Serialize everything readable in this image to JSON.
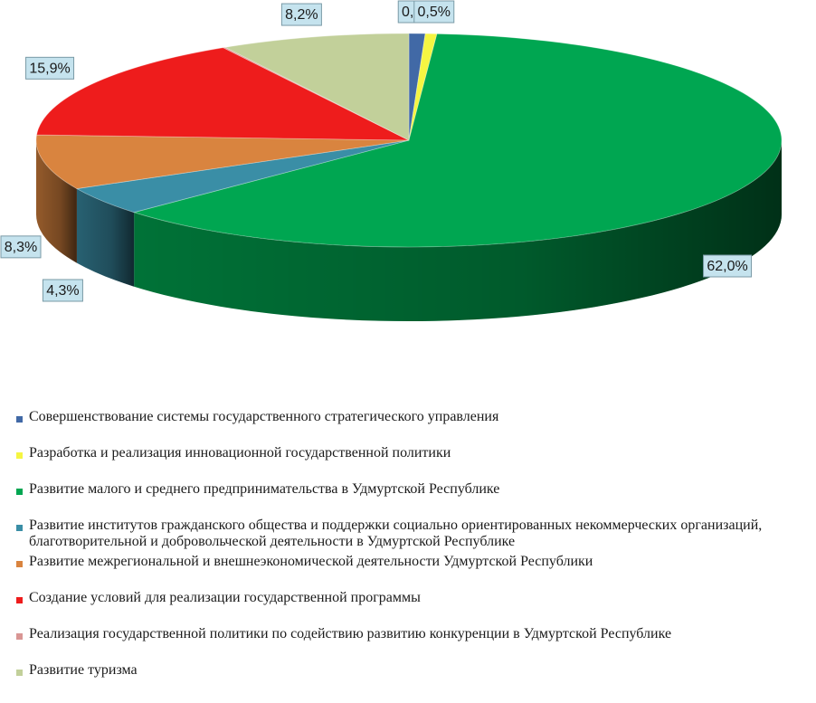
{
  "chart_data": {
    "type": "pie",
    "three_d": true,
    "start_angle_deg": -90,
    "slices": [
      {
        "label": "Совершенствование системы государственного стратегического управления",
        "value": 0.7,
        "value_label": "0,7%",
        "color": "#4169a6"
      },
      {
        "label": "Разработка и реализация инновационной государственной политики",
        "value": 0.5,
        "value_label": "0,5%",
        "color": "#f5f542"
      },
      {
        "label": "Развитие малого и среднего предпринимательства в Удмуртской Республике",
        "value": 62.0,
        "value_label": "62,0%",
        "color": "#00a651"
      },
      {
        "label": "Развитие институтов гражданского общества и поддержки социально ориентированных некоммерческих организаций, благотворительной и добровольческой деятельности в Удмуртской Республике",
        "value": 4.3,
        "value_label": "4,3%",
        "color": "#3a8ea6"
      },
      {
        "label": "Развитие межрегиональной и внешнеэкономической деятельности Удмуртской Республики",
        "value": 8.3,
        "value_label": "8,3%",
        "color": "#d9843f"
      },
      {
        "label": "Создание условий для реализации государственной программы",
        "value": 15.9,
        "value_label": "15,9%",
        "color": "#ee1c1c"
      },
      {
        "label": "Реализация государственной политики по содействию развитию конкуренции в Удмуртской Республике",
        "value": 0.1,
        "value_label": "",
        "color": "#d99694"
      },
      {
        "label": "Развитие туризма",
        "value": 8.2,
        "value_label": "8,2%",
        "color": "#c2d09a"
      }
    ],
    "legend_position": "bottom",
    "label_box_fill": "#c5e3ee"
  }
}
